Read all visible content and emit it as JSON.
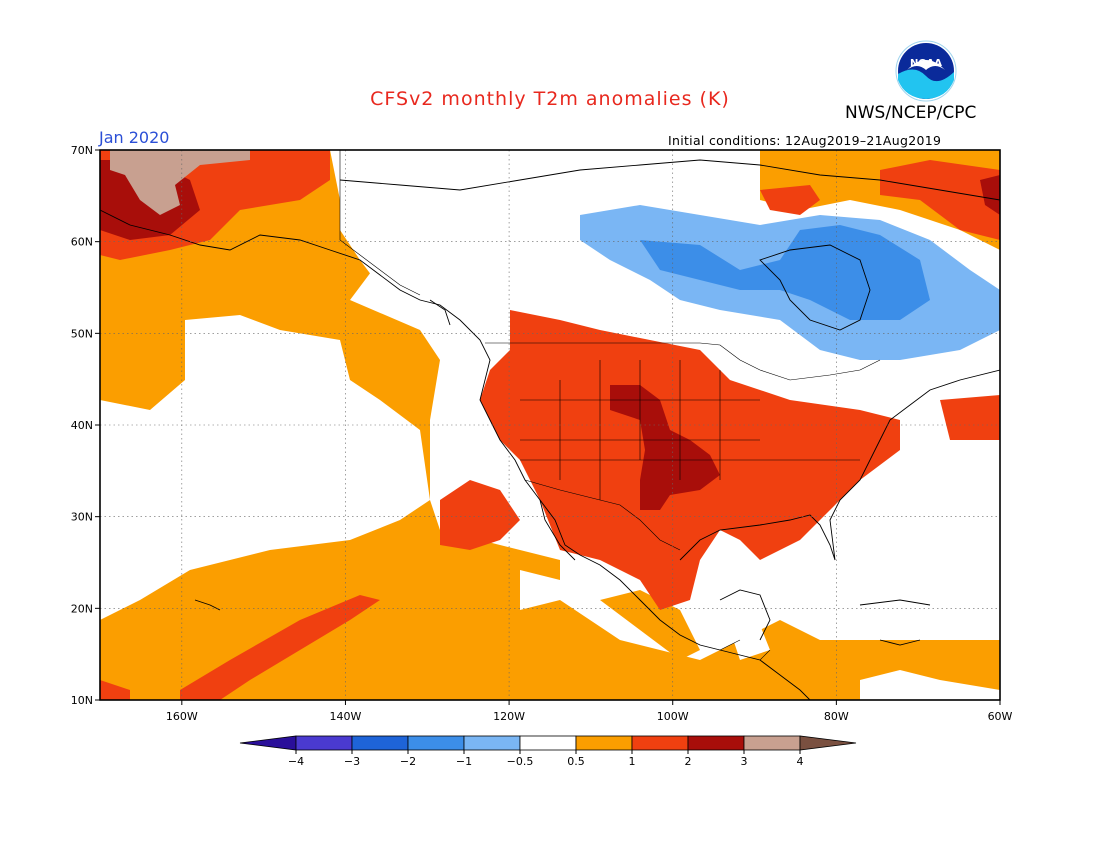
{
  "header": {
    "title": "CFSv2 monthly T2m anomalies (K)",
    "agency": "NWS/NCEP/CPC",
    "month": "Jan 2020",
    "initial_conditions": "Initial conditions: 12Aug2019–21Aug2019",
    "logo_text": "NOAA"
  },
  "map": {
    "lat_range": [
      10,
      70
    ],
    "lon_range": [
      -170,
      -60
    ],
    "lat_ticks": [
      {
        "value": 70,
        "label": "70N"
      },
      {
        "value": 60,
        "label": "60N"
      },
      {
        "value": 50,
        "label": "50N"
      },
      {
        "value": 40,
        "label": "40N"
      },
      {
        "value": 30,
        "label": "30N"
      },
      {
        "value": 20,
        "label": "20N"
      },
      {
        "value": 10,
        "label": "10N"
      }
    ],
    "lon_ticks": [
      {
        "value": -160,
        "label": "160W"
      },
      {
        "value": -140,
        "label": "140W"
      },
      {
        "value": -120,
        "label": "120W"
      },
      {
        "value": -100,
        "label": "100W"
      },
      {
        "value": -80,
        "label": "80W"
      },
      {
        "value": -60,
        "label": "60W"
      }
    ],
    "grid": true
  },
  "colorbar": {
    "colors": [
      "#2a0f9a",
      "#4a3ad0",
      "#1e64d8",
      "#3c8ee8",
      "#7ab6f4",
      "#ffffff",
      "#fb9e00",
      "#f04010",
      "#a80e0a",
      "#c8a090",
      "#7a5040"
    ],
    "labels": [
      "−4",
      "−3",
      "−2",
      "−1",
      "−0.5",
      "0.5",
      "1",
      "2",
      "3",
      "4"
    ]
  }
}
